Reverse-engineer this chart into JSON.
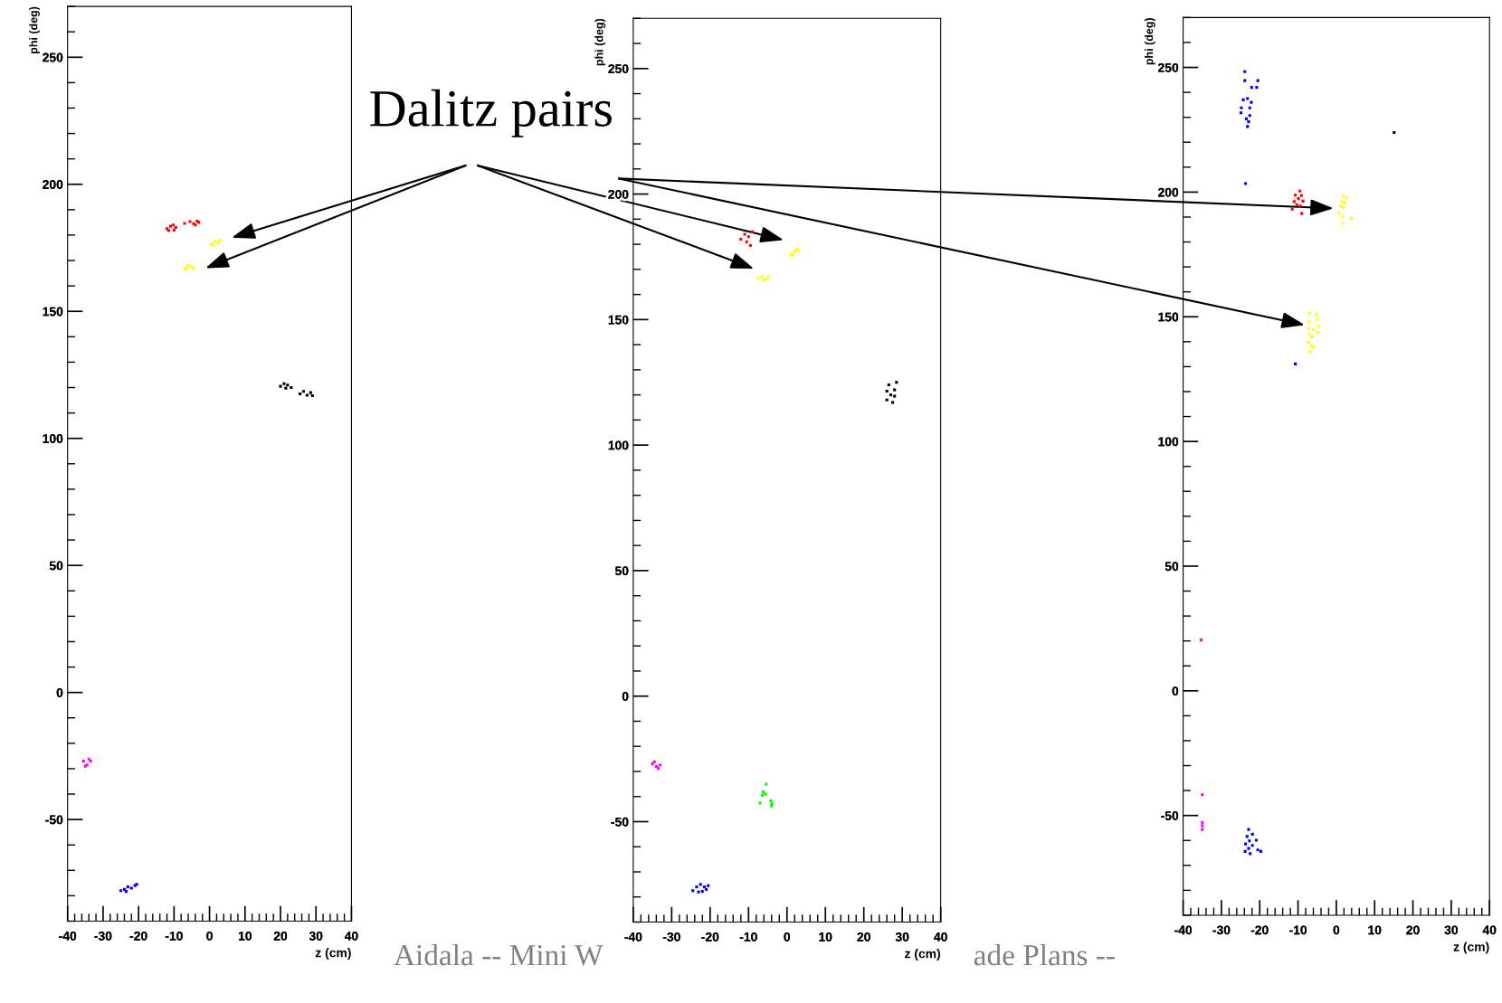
{
  "chart_data": [
    {
      "type": "scatter",
      "xlabel": "z (cm)",
      "ylabel": "phi (deg)",
      "xlim": [
        -40,
        40
      ],
      "ylim": [
        -90,
        270
      ],
      "xticks": [
        -40,
        -30,
        -20,
        -10,
        0,
        10,
        20,
        30,
        40
      ],
      "yticks": [
        -50,
        0,
        50,
        100,
        150,
        200,
        250
      ],
      "marker": "square",
      "grid": false,
      "legend": false,
      "annotations": [
        "Dalitz pairs",
        "Aidala -- Mini W"
      ],
      "series": [
        {
          "color": "#ff0000",
          "x": [
            -12,
            -11,
            -10,
            -9.5,
            -11.5,
            -10.2,
            -7,
            -5.5,
            -4.5,
            -3.5,
            -4,
            -3
          ],
          "values": [
            182.5,
            183.5,
            182,
            183,
            181.8,
            184,
            184.6,
            185.3,
            184.5,
            185.5,
            184,
            185
          ]
        },
        {
          "color": "#ffff00",
          "x": [
            0.5,
            1.5,
            2.5,
            3,
            1,
            -7,
            -6,
            -5,
            -4.5,
            -6.5
          ],
          "values": [
            176.5,
            177.5,
            177,
            178,
            176,
            167,
            168,
            167.5,
            166.8,
            166.5
          ]
        },
        {
          "color": "#000000",
          "x": [
            20,
            21,
            22,
            23,
            21.5,
            25.5,
            26.5,
            27.5,
            28.5,
            29
          ],
          "values": [
            120.5,
            121.5,
            121,
            120,
            119.8,
            117.5,
            118.5,
            117,
            118,
            116.8
          ]
        },
        {
          "color": "#ff00ff",
          "x": [
            -35.5,
            -34.5,
            -33.5,
            -34,
            -35
          ],
          "values": [
            -27,
            -28.5,
            -27,
            -26.2,
            -29
          ]
        },
        {
          "color": "#0000ff",
          "x": [
            -25,
            -24,
            -23,
            -22,
            -21,
            -20.5,
            -23.5
          ],
          "values": [
            -78,
            -77.5,
            -76.5,
            -77,
            -76,
            -75.5,
            -78.3
          ]
        }
      ]
    },
    {
      "type": "scatter",
      "xlabel": "z (cm)",
      "ylabel": "phi (deg)",
      "xlim": [
        -40,
        40
      ],
      "ylim": [
        -90,
        270
      ],
      "xticks": [
        -40,
        -30,
        -20,
        -10,
        0,
        10,
        20,
        30,
        40
      ],
      "yticks": [
        -50,
        0,
        50,
        100,
        150,
        200,
        250
      ],
      "marker": "square",
      "grid": false,
      "legend": false,
      "annotations": [
        "ade Plans --"
      ],
      "series": [
        {
          "color": "#ff0000",
          "x": [
            -12,
            -11,
            -10,
            -9,
            -10.5,
            -9.5
          ],
          "values": [
            182,
            184,
            183,
            185,
            181,
            179.5
          ]
        },
        {
          "color": "#ffff00",
          "x": [
            1,
            2,
            3,
            1.5,
            2.5,
            -7.5,
            -6.5,
            -5.5,
            -4.8,
            -6
          ],
          "values": [
            176,
            177,
            177.5,
            175.5,
            178,
            166.5,
            167,
            166,
            166.8,
            165.8
          ]
        },
        {
          "color": "#000000",
          "x": [
            26,
            27,
            28,
            26.5,
            27.5,
            28.5,
            26,
            28
          ],
          "values": [
            118,
            120,
            122,
            124,
            117,
            125,
            121.5,
            119.5
          ]
        },
        {
          "color": "#ff00ff",
          "x": [
            -35,
            -34,
            -33,
            -34.5,
            -33.5
          ],
          "values": [
            -27,
            -28,
            -27.5,
            -26.2,
            -28.8
          ]
        },
        {
          "color": "#00ff00",
          "x": [
            -5.4,
            -6.2,
            -5.6,
            -6.4,
            -7,
            -4.2,
            -3.9,
            -4
          ],
          "values": [
            -35.1,
            -38.1,
            -39,
            -39.5,
            -42.6,
            -41.7,
            -42.9,
            -43.8
          ]
        },
        {
          "color": "#0000ff",
          "x": [
            -24.5,
            -23.5,
            -22.5,
            -21.5,
            -20.5,
            -22,
            -23,
            -21
          ],
          "values": [
            -77.5,
            -76,
            -75,
            -76,
            -75.5,
            -77.8,
            -78,
            -77
          ]
        }
      ]
    },
    {
      "type": "scatter",
      "xlabel": "z (cm)",
      "ylabel": "phi (deg)",
      "xlim": [
        -40,
        40
      ],
      "ylim": [
        -90,
        270
      ],
      "xticks": [
        -40,
        -30,
        -20,
        -10,
        0,
        10,
        20,
        30,
        40
      ],
      "yticks": [
        -50,
        0,
        50,
        100,
        150,
        200,
        250
      ],
      "marker": "square",
      "grid": false,
      "legend": false,
      "series": [
        {
          "color": "#0000ff",
          "x": [
            -23.9,
            -23.9,
            -20.5,
            -22.1,
            -20.8,
            -24.3,
            -23.2,
            -22.2,
            -24.8,
            -22.6,
            -24.9,
            -22.6,
            -23.5,
            -22.9,
            -23.2,
            -23.7,
            -10.7,
            -22.9,
            -21.9,
            -23.3,
            -22.7,
            -20.9,
            -23.7,
            -21.9,
            -22.9,
            -20.5,
            -23.8,
            -22.5,
            -19.7
          ],
          "values": [
            248.3,
            244.7,
            244.7,
            242,
            242,
            237,
            237.5,
            236,
            233.8,
            233.8,
            231.8,
            230.7,
            229.4,
            228.2,
            226.3,
            203.4,
            131.1,
            -55.6,
            -57.5,
            -58.4,
            -60.2,
            -59.9,
            -61.4,
            -62,
            -63.2,
            -63.8,
            -64.4,
            -65.3,
            -64.4
          ]
        },
        {
          "color": "#000000",
          "x": [
            15.1
          ],
          "values": [
            223.9
          ]
        },
        {
          "color": "#ff0000",
          "x": [
            -9.5,
            -10.7,
            -9.1,
            -9.9,
            -11,
            -8.7,
            -10.3,
            -9.4,
            -11.5,
            -9
          ],
          "values": [
            200.4,
            198.8,
            198.6,
            197.4,
            196.2,
            196.4,
            195,
            194.4,
            193.2,
            191.4
          ]
        },
        {
          "color": "#ffff00",
          "x": [
            1.9,
            2.7,
            1.5,
            2.3,
            1.1,
            1.9,
            0.7,
            1.5,
            4,
            1.7,
            -7,
            -5.2,
            -7.1,
            -4.9,
            -4.6,
            -7.3,
            -6,
            -4.8,
            -7,
            -6.4,
            -7.3,
            -6.5,
            -6,
            -7
          ],
          "values": [
            198.4,
            197.6,
            196.2,
            195.6,
            194.4,
            193.8,
            191.6,
            190.2,
            189.5,
            187.5,
            151.3,
            150.8,
            147.9,
            148.9,
            146.1,
            145.3,
            144.9,
            143.7,
            143.1,
            141.9,
            139.7,
            138.3,
            137.7,
            136.1
          ]
        },
        {
          "color": "#ff00ff",
          "x": [
            -35.3,
            -35,
            -35,
            -35,
            -35
          ],
          "values": [
            20.4,
            -41.7,
            -52.9,
            -54.1,
            -55.6
          ]
        }
      ]
    }
  ]
}
